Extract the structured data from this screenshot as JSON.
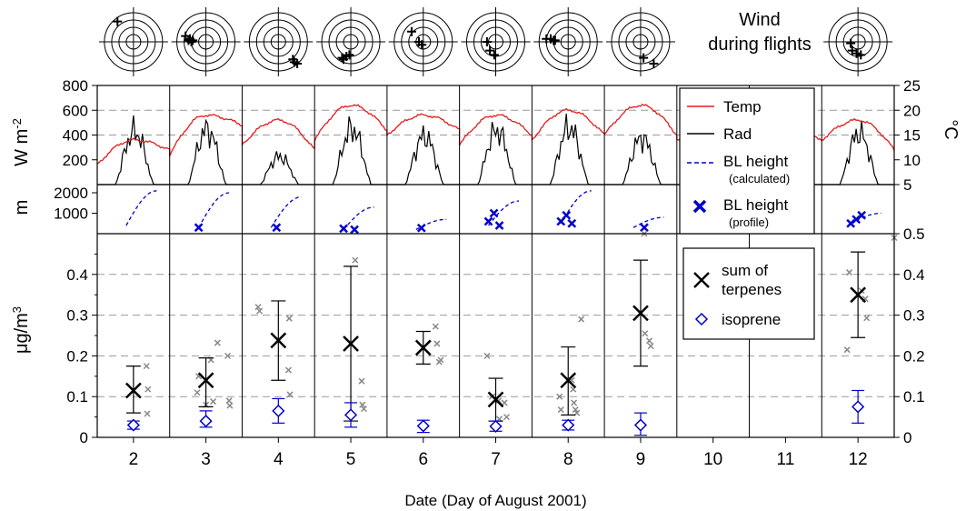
{
  "chart_data": {
    "type": "scatter",
    "xlabel": "Date (Day of August 2001)",
    "x_ticks": [
      "2",
      "3",
      "4",
      "5",
      "6",
      "7",
      "8",
      "9",
      "10",
      "11",
      "12"
    ],
    "wind_title": [
      "Wind",
      "during flights"
    ],
    "colors": {
      "temp": "#e41a1c",
      "rad": "#000000",
      "bl": "#0000cc",
      "iso": "#0000cc",
      "terp": "#000000",
      "samples": "#888888"
    },
    "panel_top": {
      "ylabel_left": "W m",
      "ylabel_left_sup": "-2",
      "ylabel_right": "°C",
      "y_left_ticks": [
        "200",
        "400",
        "600",
        "800"
      ],
      "y_left_range": [
        0,
        800
      ],
      "y_right_ticks": [
        "5",
        "10",
        "15",
        "20",
        "25"
      ],
      "y_right_range": [
        5,
        25
      ],
      "legend": {
        "temp": "Temp",
        "rad": "Rad",
        "bl_calc_1": "BL height",
        "bl_calc_2": "(calculated)",
        "bl_prof_1": "BL height",
        "bl_prof_2": "(profile)"
      },
      "rad_peaks": [
        570,
        590,
        300,
        600,
        520,
        580,
        610,
        500,
        null,
        null,
        550
      ],
      "temp_daily": [
        [
          9,
          14,
          12
        ],
        [
          11,
          19,
          17
        ],
        [
          13,
          18,
          12
        ],
        [
          14,
          21,
          16
        ],
        [
          15,
          19,
          16
        ],
        [
          13,
          19,
          15
        ],
        [
          14,
          20,
          15
        ],
        [
          15,
          21,
          15
        ],
        [
          14,
          17,
          13
        ],
        [
          13,
          17,
          14
        ],
        [
          14,
          18,
          12
        ]
      ]
    },
    "panel_mid": {
      "ylabel": "m",
      "y_ticks": [
        "1000",
        "2000"
      ],
      "y_range": [
        0,
        2400
      ],
      "bl_calc_days": [
        [
          2,
          400,
          2100
        ],
        [
          3,
          300,
          2000
        ],
        [
          4,
          300,
          1800
        ],
        [
          5,
          200,
          1300
        ],
        [
          6,
          200,
          700
        ],
        [
          7,
          400,
          1600
        ],
        [
          8,
          500,
          2100
        ],
        [
          9,
          300,
          800
        ],
        [
          12,
          500,
          1000
        ]
      ],
      "bl_profile_points": [
        [
          3,
          300
        ],
        [
          4,
          300
        ],
        [
          5,
          200
        ],
        [
          5,
          250
        ],
        [
          6,
          280
        ],
        [
          7,
          400
        ],
        [
          7,
          600
        ],
        [
          7,
          1000
        ],
        [
          8,
          500
        ],
        [
          8,
          600
        ],
        [
          8,
          900
        ],
        [
          9,
          300
        ],
        [
          12,
          500
        ],
        [
          12,
          700
        ],
        [
          12,
          900
        ]
      ]
    },
    "panel_bottom": {
      "ylabel": "μg/m",
      "ylabel_sup": "3",
      "y_ticks": [
        "0",
        "0.1",
        "0.2",
        "0.3",
        "0.4"
      ],
      "y_right_ticks": [
        "0",
        "0.1",
        "0.2",
        "0.3",
        "0.4",
        "0.5"
      ],
      "y_range": [
        0,
        0.5
      ],
      "legend": {
        "terp_1": "sum of",
        "terp_2": "terpenes",
        "iso": "isoprene"
      },
      "terpenes": [
        {
          "day": 2,
          "mean": 0.115,
          "low": 0.06,
          "high": 0.175
        },
        {
          "day": 3,
          "mean": 0.14,
          "low": 0.075,
          "high": 0.195
        },
        {
          "day": 4,
          "mean": 0.238,
          "low": 0.14,
          "high": 0.335
        },
        {
          "day": 5,
          "mean": 0.23,
          "low": 0.04,
          "high": 0.42
        },
        {
          "day": 6,
          "mean": 0.22,
          "low": 0.18,
          "high": 0.26
        },
        {
          "day": 7,
          "mean": 0.093,
          "low": 0.04,
          "high": 0.145
        },
        {
          "day": 8,
          "mean": 0.14,
          "low": 0.055,
          "high": 0.222
        },
        {
          "day": 9,
          "mean": 0.305,
          "low": 0.175,
          "high": 0.435
        },
        {
          "day": 12,
          "mean": 0.35,
          "low": 0.245,
          "high": 0.455
        }
      ],
      "isoprene": [
        {
          "day": 2,
          "mean": 0.03,
          "low": 0.02,
          "high": 0.04
        },
        {
          "day": 3,
          "mean": 0.04,
          "low": 0.025,
          "high": 0.065
        },
        {
          "day": 4,
          "mean": 0.065,
          "low": 0.035,
          "high": 0.095
        },
        {
          "day": 5,
          "mean": 0.055,
          "low": 0.025,
          "high": 0.085
        },
        {
          "day": 6,
          "mean": 0.028,
          "low": 0.012,
          "high": 0.042
        },
        {
          "day": 7,
          "mean": 0.027,
          "low": 0.015,
          "high": 0.04
        },
        {
          "day": 8,
          "mean": 0.03,
          "low": 0.018,
          "high": 0.042
        },
        {
          "day": 9,
          "mean": 0.03,
          "low": 0.005,
          "high": 0.06
        },
        {
          "day": 12,
          "mean": 0.075,
          "low": 0.035,
          "high": 0.115
        }
      ],
      "samples": [
        [
          2.18,
          0.175
        ],
        [
          2.2,
          0.118
        ],
        [
          2.19,
          0.058
        ],
        [
          2.9,
          0.15
        ],
        [
          2.88,
          0.11
        ],
        [
          3.07,
          0.19
        ],
        [
          3.1,
          0.088
        ],
        [
          3.16,
          0.232
        ],
        [
          3.3,
          0.2
        ],
        [
          3.32,
          0.09
        ],
        [
          3.33,
          0.078
        ],
        [
          3.0,
          0.08
        ],
        [
          3.72,
          0.32
        ],
        [
          3.74,
          0.31
        ],
        [
          4.15,
          0.292
        ],
        [
          4.14,
          0.165
        ],
        [
          4.16,
          0.105
        ],
        [
          5.06,
          0.435
        ],
        [
          5.15,
          0.138
        ],
        [
          5.16,
          0.08
        ],
        [
          5.18,
          0.07
        ],
        [
          6.17,
          0.272
        ],
        [
          6.19,
          0.23
        ],
        [
          6.24,
          0.19
        ],
        [
          6.22,
          0.185
        ],
        [
          6.88,
          0.2
        ],
        [
          6.95,
          0.1
        ],
        [
          7.04,
          0.09
        ],
        [
          7.12,
          0.085
        ],
        [
          7.15,
          0.05
        ],
        [
          7.05,
          0.045
        ],
        [
          7.88,
          0.1
        ],
        [
          7.9,
          0.068
        ],
        [
          8.05,
          0.14
        ],
        [
          8.07,
          0.118
        ],
        [
          8.08,
          0.085
        ],
        [
          8.1,
          0.068
        ],
        [
          8.18,
          0.29
        ],
        [
          8.12,
          0.06
        ],
        [
          9.05,
          0.5
        ],
        [
          9.06,
          0.255
        ],
        [
          9.12,
          0.237
        ],
        [
          9.14,
          0.224
        ],
        [
          11.85,
          0.215
        ],
        [
          11.88,
          0.405
        ],
        [
          12.05,
          0.36
        ],
        [
          12.1,
          0.34
        ],
        [
          12.12,
          0.293
        ],
        [
          12.5,
          0.49
        ]
      ]
    },
    "wind": [
      {
        "day": 2,
        "marks": [
          [
            -0.55,
            0.7
          ]
        ]
      },
      {
        "day": 3,
        "marks": [
          [
            -0.7,
            0.2
          ],
          [
            -0.55,
            0.1
          ],
          [
            -0.45,
            0.05
          ],
          [
            -0.6,
            0.05
          ],
          [
            -0.5,
            0.0
          ]
        ]
      },
      {
        "day": 4,
        "marks": [
          [
            0.5,
            -0.6
          ],
          [
            0.65,
            -0.75
          ],
          [
            0.55,
            -0.7
          ]
        ]
      },
      {
        "day": 5,
        "marks": [
          [
            -0.3,
            -0.55
          ],
          [
            -0.15,
            -0.5
          ],
          [
            -0.05,
            -0.45
          ],
          [
            -0.25,
            -0.6
          ]
        ]
      },
      {
        "day": 6,
        "marks": [
          [
            -0.4,
            0.35
          ],
          [
            -0.15,
            0.0
          ],
          [
            -0.05,
            -0.1
          ]
        ]
      },
      {
        "day": 7,
        "marks": [
          [
            -0.3,
            0.0
          ],
          [
            -0.2,
            -0.3
          ],
          [
            -0.05,
            -0.45
          ]
        ]
      },
      {
        "day": 8,
        "marks": [
          [
            -0.75,
            0.1
          ],
          [
            -0.6,
            0.1
          ],
          [
            -0.5,
            0.05
          ],
          [
            -0.45,
            0.05
          ]
        ]
      },
      {
        "day": 9,
        "marks": [
          [
            0.1,
            -0.55
          ],
          [
            0.45,
            -0.75
          ]
        ]
      },
      {
        "day": 12,
        "marks": [
          [
            -0.25,
            -0.05
          ],
          [
            -0.2,
            -0.3
          ],
          [
            -0.05,
            -0.4
          ],
          [
            0.1,
            -0.45
          ]
        ]
      }
    ]
  }
}
